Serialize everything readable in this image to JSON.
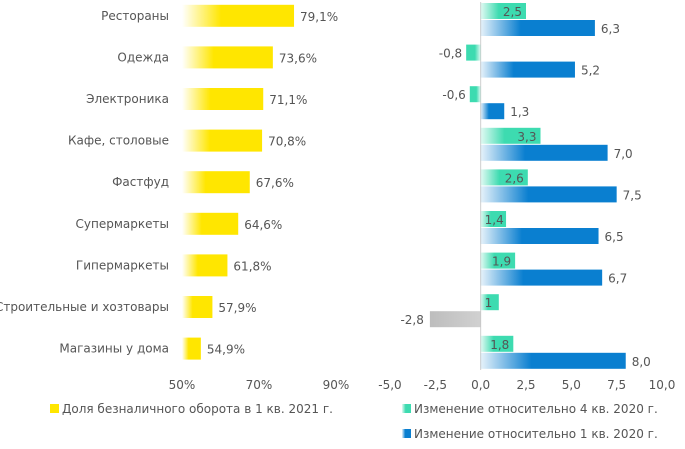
{
  "chart_data": [
    {
      "type": "bar",
      "orientation": "horizontal",
      "categories": [
        "Рестораны",
        "Одежда",
        "Электроника",
        "Кафе, столовые",
        "Фастфуд",
        "Супермаркеты",
        "Гипермаркеты",
        "Строительные и хозтовары",
        "Магазины у дома"
      ],
      "series": [
        {
          "name": "Доля безналичного оборота в 1 кв. 2021 г.",
          "values": [
            79.1,
            73.6,
            71.1,
            70.8,
            67.6,
            64.6,
            61.8,
            57.9,
            54.9
          ],
          "labels": [
            "79,1%",
            "73,6%",
            "71,1%",
            "70,8%",
            "67,6%",
            "64,6%",
            "61,8%",
            "57,9%",
            "54,9%"
          ],
          "color": "#ffe600"
        }
      ],
      "xlim": [
        50,
        90
      ],
      "xticks": [
        50,
        70,
        90
      ],
      "xtick_labels": [
        "50%",
        "70%",
        "90%"
      ],
      "legend": "bottom"
    },
    {
      "type": "bar",
      "orientation": "horizontal",
      "categories": [
        "Рестораны",
        "Одежда",
        "Электроника",
        "Кафе, столовые",
        "Фастфуд",
        "Супермаркеты",
        "Гипермаркеты",
        "Строительные и хозтовары",
        "Магазины у дома"
      ],
      "series": [
        {
          "name": "Изменение относительно 4 кв. 2020 г.",
          "values": [
            2.5,
            -0.8,
            -0.6,
            3.3,
            2.6,
            1.4,
            1.9,
            1,
            1.8
          ],
          "labels": [
            "2,5",
            "-0,8",
            "-0,6",
            "3,3",
            "2,6",
            "1,4",
            "1,9",
            "1",
            "1,8"
          ],
          "color": "#3ddbb0"
        },
        {
          "name": "Изменение относительно 1 кв. 2020 г.",
          "values": [
            6.3,
            5.2,
            1.3,
            7.0,
            7.5,
            6.5,
            6.7,
            -2.8,
            8.0
          ],
          "labels": [
            "6,3",
            "5,2",
            "1,3",
            "7,0",
            "7,5",
            "6,5",
            "6,7",
            "-2,8",
            "8,0"
          ],
          "color": "#0a7fd0",
          "negative_color": "#bdbdbd"
        }
      ],
      "xlim": [
        -5,
        10
      ],
      "xticks": [
        -5,
        -2.5,
        0,
        2.5,
        5,
        7.5,
        10
      ],
      "xtick_labels": [
        "-5,0",
        "-2,5",
        "0,0",
        "2,5",
        "5,0",
        "7,5",
        "10,0"
      ],
      "legend": "bottom-right"
    }
  ]
}
